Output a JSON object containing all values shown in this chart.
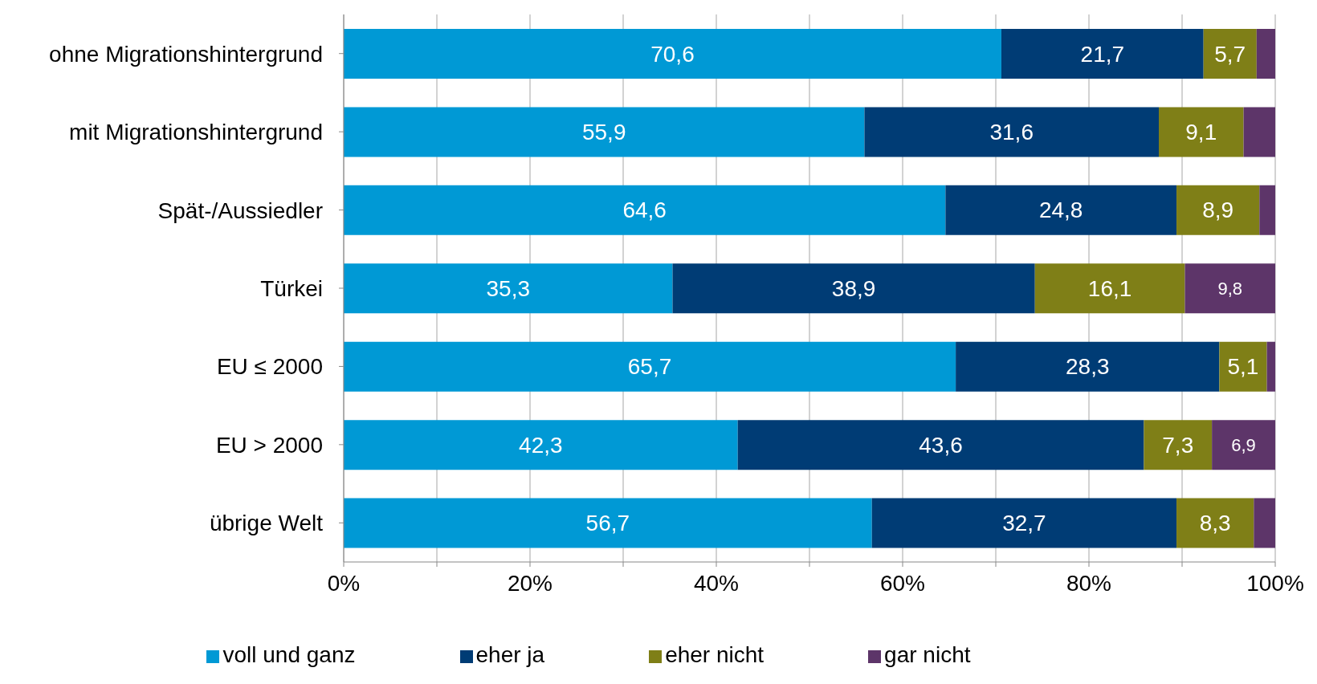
{
  "chart_data": {
    "type": "bar",
    "orientation": "horizontal",
    "stacked": true,
    "categories": [
      "ohne Migrationshintergrund",
      "mit Migrationshintergrund",
      "Spät-/Aussiedler",
      "Türkei",
      "EU ≤ 2000",
      "EU > 2000",
      "übrige Welt"
    ],
    "series": [
      {
        "name": "voll und ganz",
        "color": "#0099d5",
        "values": [
          70.6,
          55.9,
          64.6,
          35.3,
          65.7,
          42.3,
          56.7
        ],
        "value_labels": [
          "70,6",
          "55,9",
          "64,6",
          "35,3",
          "65,7",
          "42,3",
          "56,7"
        ]
      },
      {
        "name": "eher ja",
        "color": "#003c75",
        "values": [
          21.7,
          31.6,
          24.8,
          38.9,
          28.3,
          43.6,
          32.7
        ],
        "value_labels": [
          "21,7",
          "31,6",
          "24,8",
          "38,9",
          "28,3",
          "43,6",
          "32,7"
        ]
      },
      {
        "name": "eher nicht",
        "color": "#7f7f17",
        "values": [
          5.7,
          9.1,
          8.9,
          16.1,
          5.1,
          7.3,
          8.3
        ],
        "value_labels": [
          "5,7",
          "9,1",
          "8,9",
          "16,1",
          "5,1",
          "7,3",
          "8,3"
        ]
      },
      {
        "name": "gar nicht",
        "color": "#5d3569",
        "values": [
          2.0,
          3.4,
          1.7,
          9.8,
          0.9,
          6.9,
          2.3
        ],
        "value_labels": [
          null,
          null,
          null,
          "9,8",
          null,
          "6,9",
          null
        ]
      }
    ],
    "xlim": [
      0,
      100
    ],
    "xticks": [
      {
        "value": 0,
        "label": "0%"
      },
      {
        "value": 10,
        "label": null
      },
      {
        "value": 20,
        "label": "20%"
      },
      {
        "value": 30,
        "label": null
      },
      {
        "value": 40,
        "label": "40%"
      },
      {
        "value": 50,
        "label": null
      },
      {
        "value": 60,
        "label": "60%"
      },
      {
        "value": 70,
        "label": null
      },
      {
        "value": 80,
        "label": "80%"
      },
      {
        "value": 90,
        "label": null
      },
      {
        "value": 100,
        "label": "100%"
      }
    ],
    "grid": "x",
    "legend": "bottom"
  }
}
